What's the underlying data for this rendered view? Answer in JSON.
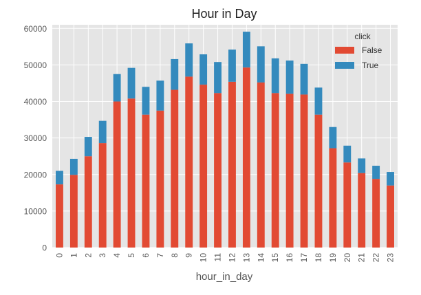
{
  "chart_data": {
    "type": "bar",
    "stacked": true,
    "title": "Hour in Day",
    "xlabel": "hour_in_day",
    "ylabel": "",
    "categories": [
      "0",
      "1",
      "2",
      "3",
      "4",
      "5",
      "6",
      "7",
      "8",
      "9",
      "10",
      "11",
      "12",
      "13",
      "14",
      "15",
      "16",
      "17",
      "18",
      "19",
      "20",
      "21",
      "22",
      "23"
    ],
    "series": [
      {
        "name": "False",
        "color": "#E24A33",
        "values": [
          17300,
          19900,
          25000,
          28600,
          40000,
          40800,
          36400,
          37500,
          43200,
          46800,
          44600,
          42300,
          45400,
          49300,
          45200,
          42300,
          42100,
          41900,
          36400,
          27200,
          23300,
          20400,
          18800,
          17000
        ]
      },
      {
        "name": "True",
        "color": "#348ABD",
        "values": [
          3700,
          4400,
          5300,
          6100,
          7500,
          8400,
          7600,
          8200,
          8400,
          9100,
          8300,
          8500,
          8800,
          9800,
          9900,
          9500,
          9100,
          8400,
          7400,
          5800,
          4600,
          4000,
          3600,
          3700
        ]
      }
    ],
    "yticks": [
      "0",
      "10000",
      "20000",
      "30000",
      "40000",
      "50000",
      "60000"
    ],
    "ylim": [
      0,
      61000
    ],
    "legend": {
      "title": "click",
      "placement": "top-right"
    },
    "grid": true,
    "style": {
      "plot_background": "#E5E5E5",
      "grid_color": "#FFFFFF"
    }
  }
}
